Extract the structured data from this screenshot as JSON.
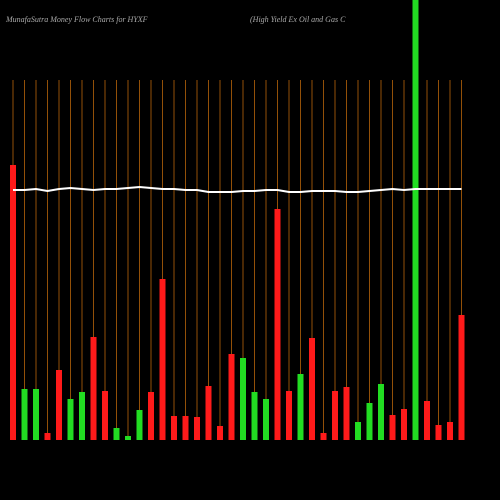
{
  "chart_data": {
    "type": "bar",
    "title": "MunafaSutra  Money Flow  Charts for HYXF",
    "subtitle": "(High Yield Ex Oil and Gas C",
    "categories": [
      null,
      null,
      null,
      null,
      null,
      null,
      null,
      null,
      null,
      null,
      null,
      null,
      null,
      null,
      null,
      null,
      null,
      null,
      null,
      null,
      null,
      null,
      null,
      null,
      null,
      null,
      null,
      null,
      null,
      null,
      null,
      null,
      null,
      null,
      null,
      null,
      null,
      null,
      null,
      null
    ],
    "values": [
      275,
      51,
      51,
      7,
      70,
      41,
      48,
      103,
      49,
      12,
      4,
      30,
      48,
      161,
      24,
      24,
      23,
      54,
      14,
      86,
      82,
      48,
      41,
      231,
      49,
      66,
      102,
      7,
      49,
      53,
      18,
      37,
      56,
      25,
      31,
      440,
      39,
      15,
      18,
      125
    ],
    "colors": [
      "#ff1a1a",
      "#22dd22",
      "#22dd22",
      "#ff1a1a",
      "#ff1a1a",
      "#22dd22",
      "#22dd22",
      "#ff1a1a",
      "#ff1a1a",
      "#22dd22",
      "#22dd22",
      "#22dd22",
      "#ff1a1a",
      "#ff1a1a",
      "#ff1a1a",
      "#ff1a1a",
      "#ff1a1a",
      "#ff1a1a",
      "#ff1a1a",
      "#ff1a1a",
      "#22dd22",
      "#22dd22",
      "#22dd22",
      "#ff1a1a",
      "#ff1a1a",
      "#22dd22",
      "#ff1a1a",
      "#ff1a1a",
      "#ff1a1a",
      "#ff1a1a",
      "#22dd22",
      "#22dd22",
      "#22dd22",
      "#ff1a1a",
      "#ff1a1a",
      "#22dd22",
      "#ff1a1a",
      "#ff1a1a",
      "#ff1a1a",
      "#ff1a1a"
    ],
    "line_values": [
      250,
      250,
      251,
      249,
      251,
      252,
      251,
      250,
      251,
      251,
      252,
      253,
      252,
      251,
      251,
      250,
      250,
      248,
      248,
      248,
      249,
      249,
      250,
      250,
      248,
      248,
      249,
      249,
      249,
      248,
      248,
      249,
      250,
      251,
      250,
      251,
      251,
      251,
      251,
      251
    ],
    "line_color": "#ffffff",
    "grid_color": "#b8640a",
    "ylim": [
      0,
      440
    ]
  }
}
